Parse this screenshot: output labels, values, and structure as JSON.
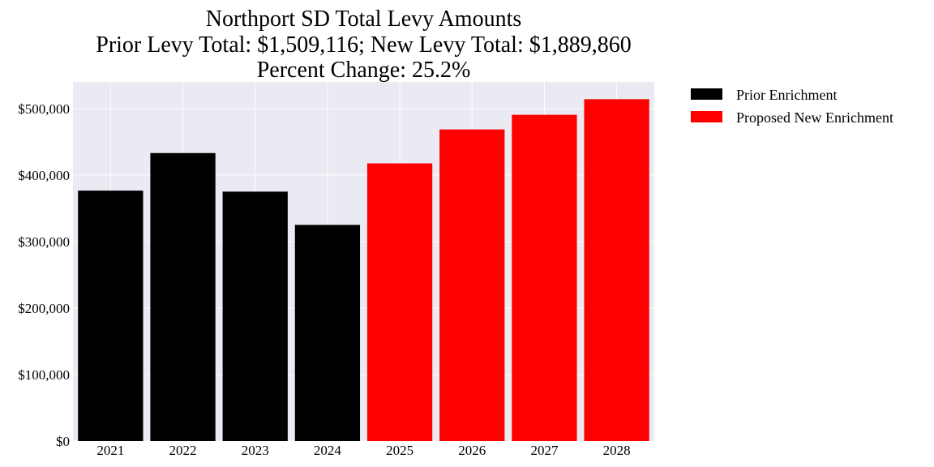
{
  "chart_data": {
    "type": "bar",
    "title_lines": [
      "Northport SD Total Levy Amounts",
      "Prior Levy Total:  $1,509,116; New Levy Total: $1,889,860",
      "Percent Change: 25.2%"
    ],
    "categories": [
      "2021",
      "2022",
      "2023",
      "2024",
      "2025",
      "2026",
      "2027",
      "2028"
    ],
    "series": [
      {
        "name": "Prior Enrichment",
        "color": "#000000",
        "values": [
          376500,
          433000,
          375000,
          325000,
          null,
          null,
          null,
          null
        ]
      },
      {
        "name": "Proposed New Enrichment",
        "color": "#ff0000",
        "values": [
          null,
          null,
          null,
          null,
          417500,
          468500,
          490500,
          514000
        ]
      }
    ],
    "ylim": [
      0,
      540000
    ],
    "yticks": [
      0,
      100000,
      200000,
      300000,
      400000,
      500000
    ],
    "ytick_labels": [
      "$0",
      "$100,000",
      "$200,000",
      "$300,000",
      "$400,000",
      "$500,000"
    ],
    "grid": true,
    "plot_background": "#eaeaf2",
    "grid_color": "#ffffff",
    "legend_position": "outside-top-right"
  }
}
